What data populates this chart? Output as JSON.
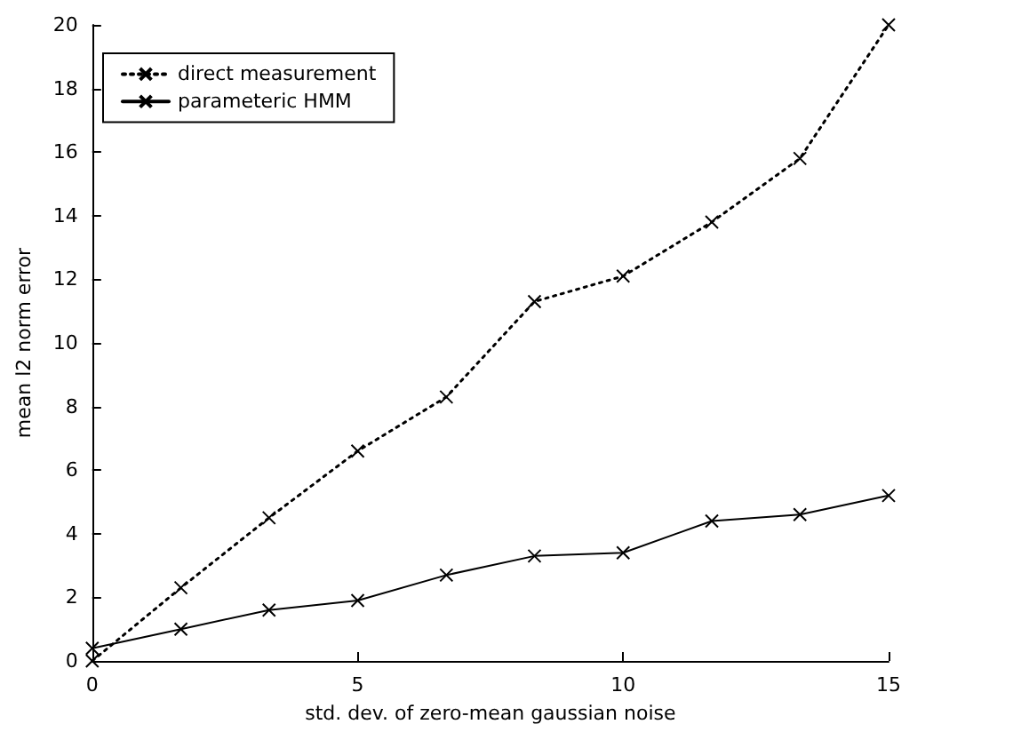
{
  "chart_data": {
    "type": "line",
    "xlabel": "std. dev. of zero-mean gaussian noise",
    "ylabel": "mean l2 norm error",
    "x": [
      0,
      1.67,
      3.33,
      5,
      6.67,
      8.33,
      10,
      11.67,
      13.33,
      15
    ],
    "series": [
      {
        "name": "direct measurement",
        "color": "#000000",
        "line_style": "dotted",
        "values": [
          0,
          2.3,
          4.5,
          6.6,
          8.3,
          11.3,
          12.1,
          13.8,
          15.8,
          20.0
        ]
      },
      {
        "name": "parameteric HMM",
        "color": "#000000",
        "line_style": "solid",
        "values": [
          0.4,
          1.0,
          1.6,
          1.9,
          2.7,
          3.3,
          3.4,
          4.4,
          4.6,
          5.2
        ]
      }
    ],
    "xlim": [
      0,
      15
    ],
    "xticks": [
      0,
      5,
      10,
      15
    ],
    "ylim": [
      0,
      20
    ],
    "yticks": [
      0,
      2,
      4,
      6,
      8,
      10,
      12,
      14,
      16,
      18,
      20
    ],
    "grid": false,
    "legend": "top left",
    "marker": "cross"
  }
}
